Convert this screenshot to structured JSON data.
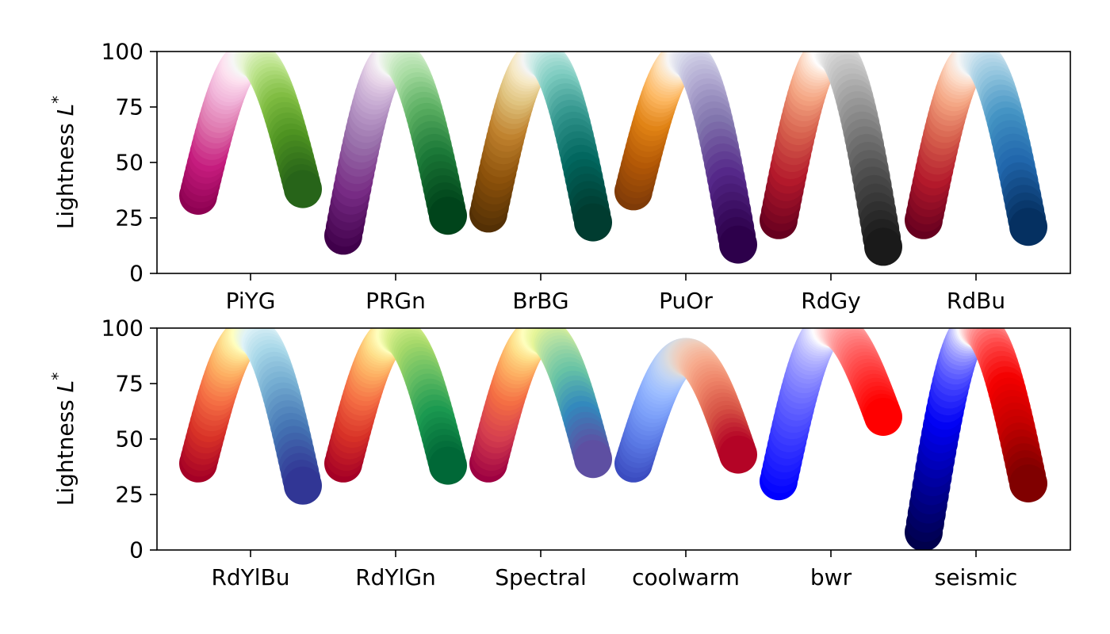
{
  "chart_data": [
    {
      "type": "scatter",
      "ylabel": "Lightness L*",
      "ylabel_text": "Lightness",
      "ylabel_symbol": "L",
      "ylabel_superscript": "*",
      "ylim": [
        0,
        100
      ],
      "yticks": [
        "0",
        "25",
        "50",
        "75",
        "100"
      ],
      "categories": [
        "PiYG",
        "PRGn",
        "BrBG",
        "PuOr",
        "RdGy",
        "RdBu"
      ],
      "series": [
        {
          "name": "PiYG",
          "lightness_start": 35,
          "lightness_peak": 97,
          "lightness_end": 38,
          "colors": [
            "#8e0152",
            "#c51b7d",
            "#de77ae",
            "#f1b6da",
            "#fde0ef",
            "#f7f7f7",
            "#e6f5d0",
            "#b8e186",
            "#7fbc41",
            "#4d9221",
            "#276419"
          ]
        },
        {
          "name": "PRGn",
          "lightness_start": 17,
          "lightness_peak": 97,
          "lightness_end": 26,
          "colors": [
            "#40004b",
            "#762a83",
            "#9970ab",
            "#c2a5cf",
            "#e7d4e8",
            "#f7f7f7",
            "#d9f0d3",
            "#a6dba0",
            "#5aae61",
            "#1b7837",
            "#00441b"
          ]
        },
        {
          "name": "BrBG",
          "lightness_start": 27,
          "lightness_peak": 97,
          "lightness_end": 23,
          "colors": [
            "#543005",
            "#8c510a",
            "#bf812d",
            "#dfc27d",
            "#f6e8c3",
            "#f5f5f5",
            "#c7eae5",
            "#80cdc1",
            "#35978f",
            "#01665e",
            "#003c30"
          ]
        },
        {
          "name": "PuOr",
          "lightness_start": 37,
          "lightness_peak": 97,
          "lightness_end": 13,
          "colors": [
            "#7f3b08",
            "#b35806",
            "#e08214",
            "#fdb863",
            "#fee0b6",
            "#f7f7f7",
            "#d8daeb",
            "#b2abd2",
            "#8073ac",
            "#542788",
            "#2d004b"
          ]
        },
        {
          "name": "RdGy",
          "lightness_start": 24,
          "lightness_peak": 100,
          "lightness_end": 12,
          "colors": [
            "#67001f",
            "#b2182b",
            "#d6604d",
            "#f4a582",
            "#fddbc7",
            "#ffffff",
            "#e0e0e0",
            "#bababa",
            "#878787",
            "#4d4d4d",
            "#1a1a1a"
          ]
        },
        {
          "name": "RdBu",
          "lightness_start": 24,
          "lightness_peak": 97,
          "lightness_end": 21,
          "colors": [
            "#67001f",
            "#b2182b",
            "#d6604d",
            "#f4a582",
            "#fddbc7",
            "#f7f7f7",
            "#d1e5f0",
            "#92c5de",
            "#4393c3",
            "#2166ac",
            "#053061"
          ]
        }
      ]
    },
    {
      "type": "scatter",
      "ylabel": "Lightness L*",
      "ylabel_text": "Lightness",
      "ylabel_symbol": "L",
      "ylabel_superscript": "*",
      "ylim": [
        0,
        100
      ],
      "yticks": [
        "0",
        "25",
        "50",
        "75",
        "100"
      ],
      "categories": [
        "RdYlBu",
        "RdYlGn",
        "Spectral",
        "coolwarm",
        "bwr",
        "seismic"
      ],
      "series": [
        {
          "name": "RdYlBu",
          "lightness_start": 39,
          "lightness_peak": 97,
          "lightness_end": 29,
          "colors": [
            "#a50026",
            "#d73027",
            "#f46d43",
            "#fdae61",
            "#fee090",
            "#ffffbf",
            "#e0f3f8",
            "#abd9e9",
            "#74add1",
            "#4575b4",
            "#313695"
          ]
        },
        {
          "name": "RdYlGn",
          "lightness_start": 39,
          "lightness_peak": 97,
          "lightness_end": 38,
          "colors": [
            "#a50026",
            "#d73027",
            "#f46d43",
            "#fdae61",
            "#fee08b",
            "#ffffbf",
            "#d9ef8b",
            "#a6d96a",
            "#66bd63",
            "#1a9850",
            "#006837"
          ]
        },
        {
          "name": "Spectral",
          "lightness_start": 39,
          "lightness_peak": 97,
          "lightness_end": 41,
          "colors": [
            "#9e0142",
            "#d53e4f",
            "#f46d43",
            "#fdae61",
            "#fee08b",
            "#ffffbf",
            "#e6f598",
            "#abdda4",
            "#66c2a5",
            "#3288bd",
            "#5e4fa2"
          ]
        },
        {
          "name": "coolwarm",
          "lightness_start": 39,
          "lightness_peak": 87,
          "lightness_end": 43,
          "colors": [
            "#3b4cc0",
            "#5977e3",
            "#7b9ff9",
            "#9ebeff",
            "#c0d4f5",
            "#dddcdc",
            "#f2cbb7",
            "#f7ac8e",
            "#ee8468",
            "#d65244",
            "#b40426"
          ]
        },
        {
          "name": "bwr",
          "lightness_start": 31,
          "lightness_peak": 100,
          "lightness_end": 60,
          "colors": [
            "#0000ff",
            "#3333ff",
            "#6666ff",
            "#9999ff",
            "#ccccff",
            "#ffffff",
            "#ffcccc",
            "#ff9999",
            "#ff6666",
            "#ff3333",
            "#ff0000"
          ]
        },
        {
          "name": "seismic",
          "lightness_start": 8,
          "lightness_peak": 100,
          "lightness_end": 30,
          "colors": [
            "#00004c",
            "#0000a0",
            "#0000f4",
            "#4d4dff",
            "#a5a5ff",
            "#fdfdfd",
            "#ffa5a5",
            "#ff4d4d",
            "#f40000",
            "#c60000",
            "#800000"
          ]
        }
      ]
    }
  ]
}
